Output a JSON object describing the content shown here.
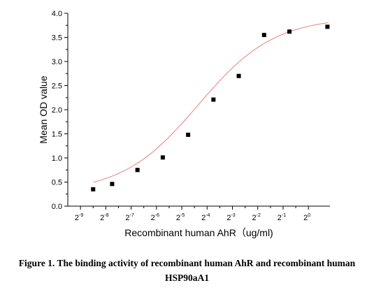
{
  "chart_data": {
    "type": "scatter",
    "xlabel": "Recombinant human  AhR（ug/ml)",
    "ylabel": "Mean OD value",
    "x_scale": "log2",
    "xlim": [
      -9.5,
      0.85
    ],
    "ylim": [
      0.0,
      4.0
    ],
    "x_ticks": [
      {
        "exp": -9,
        "label_base": "2",
        "label_exp": "-9"
      },
      {
        "exp": -8,
        "label_base": "2",
        "label_exp": "-8"
      },
      {
        "exp": -7,
        "label_base": "2",
        "label_exp": "-7"
      },
      {
        "exp": -6,
        "label_base": "2",
        "label_exp": "-6"
      },
      {
        "exp": -5,
        "label_base": "2",
        "label_exp": "-5"
      },
      {
        "exp": -4,
        "label_base": "2",
        "label_exp": "-4"
      },
      {
        "exp": -3,
        "label_base": "2",
        "label_exp": "-3"
      },
      {
        "exp": -2,
        "label_base": "2",
        "label_exp": "-2"
      },
      {
        "exp": -1,
        "label_base": "2",
        "label_exp": "-1"
      },
      {
        "exp": 0,
        "label_base": "2",
        "label_exp": "0"
      }
    ],
    "y_ticks": [
      0.0,
      0.5,
      1.0,
      1.5,
      2.0,
      2.5,
      3.0,
      3.5,
      4.0
    ],
    "y_tick_labels": [
      "0.0",
      "0.5",
      "1.0",
      "1.5",
      "2.0",
      "2.5",
      "3.0",
      "3.5",
      "4.0"
    ],
    "series": [
      {
        "x_log2": [
          -8.5,
          -7.75,
          -6.75,
          -5.75,
          -4.75,
          -3.75,
          -2.75,
          -1.75,
          -0.75,
          0.75
        ],
        "values": [
          0.35,
          0.46,
          0.75,
          1.01,
          1.48,
          2.21,
          2.7,
          3.55,
          3.62,
          3.72
        ],
        "marker": "square",
        "color": "#000000"
      }
    ],
    "fit_curve": {
      "model": "four-parameter logistic",
      "color": "#e8807c"
    },
    "grid": false,
    "legend": "none"
  },
  "caption": {
    "bold": "Figure 1. The binding activity of",
    "normal": " recombinant human AhR and recombinant human",
    "line2": "HSP90aA1"
  }
}
